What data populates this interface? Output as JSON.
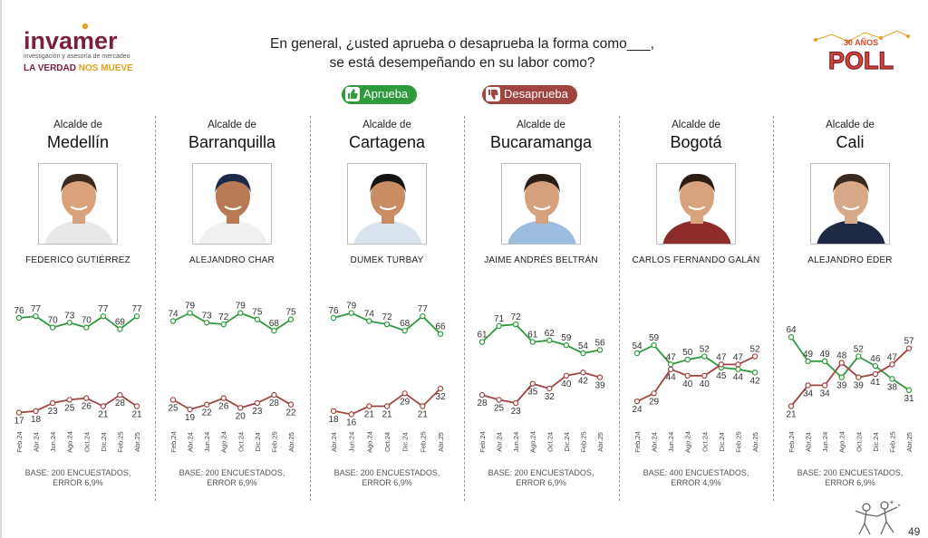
{
  "header": {
    "brand": "invamer",
    "tagline": "investigación y asesoría de mercadeo",
    "slogan_a": "LA VERDAD",
    "slogan_b": "NOS MUEVE",
    "question_line1": "En general, ¿usted aprueba o desaprueba la forma como___,",
    "question_line2": "se está desempeñando en su labor como?",
    "poll_years": "30 AÑOS",
    "poll_label": "POLL"
  },
  "legend": {
    "approve": "Aprueba",
    "disapprove": "Desaprueba",
    "approve_color": "#2e9a3c",
    "disapprove_color": "#a04440"
  },
  "page_number": "49",
  "panels": [
    {
      "role": "Alcalde de",
      "city": "Medellín",
      "name": "FEDERICO GUTIÉRREZ",
      "base_line1": "BASE: 200 ENCUESTADOS,",
      "base_line2": "ERROR 6,9%",
      "photo": {
        "skin": "#d9a27a",
        "hair": "#3a2a20",
        "shirt": "#e8e8ea"
      }
    },
    {
      "role": "Alcalde de",
      "city": "Barranquilla",
      "name": "ALEJANDRO CHAR",
      "base_line1": "BASE: 200 ENCUESTADOS,",
      "base_line2": "ERROR 6,9%",
      "photo": {
        "skin": "#b77a55",
        "hair": "#1d2a4a",
        "shirt": "#f0f0f0"
      }
    },
    {
      "role": "Alcalde de",
      "city": "Cartagena",
      "name": "DUMEK TURBAY",
      "base_line1": "BASE: 200 ENCUESTADOS,",
      "base_line2": "ERROR 6,9%",
      "photo": {
        "skin": "#c98c63",
        "hair": "#141414",
        "shirt": "#d9e4ef"
      }
    },
    {
      "role": "Alcalde de",
      "city": "Bucaramanga",
      "name": "JAIME ANDRÉS BELTRÁN",
      "base_line1": "BASE: 200 ENCUESTADOS,",
      "base_line2": "ERROR 6,9%",
      "photo": {
        "skin": "#d6a07c",
        "hair": "#2a1d16",
        "shirt": "#9cbde0"
      }
    },
    {
      "role": "Alcalde de",
      "city": "Bogotá",
      "name": "CARLOS FERNANDO GALÁN",
      "base_line1": "BASE: 400 ENCUESTADOS,",
      "base_line2": "ERROR 4,9%",
      "photo": {
        "skin": "#d7a27c",
        "hair": "#2b1c14",
        "shirt": "#8e2b2b"
      }
    },
    {
      "role": "Alcalde de",
      "city": "Cali",
      "name": "ALEJANDRO ÉDER",
      "base_line1": "BASE: 200 ENCUESTADOS,",
      "base_line2": "ERROR 6,9%",
      "photo": {
        "skin": "#d8a988",
        "hair": "#3a2a20",
        "shirt": "#1e2a44"
      }
    }
  ],
  "chart_data": [
    {
      "type": "line",
      "title": "Medellín",
      "categories": [
        "Feb.24",
        "Abr.24",
        "Jun.24",
        "Ago.24",
        "Oct.24",
        "Dic.24",
        "Feb.25",
        "Abr.25"
      ],
      "ylim": [
        0,
        100
      ],
      "series": [
        {
          "name": "Aprueba",
          "color": "#2e9a3c",
          "values": [
            76,
            77,
            70,
            73,
            70,
            77,
            69,
            77
          ]
        },
        {
          "name": "Desaprueba",
          "color": "#a04440",
          "values": [
            17,
            18,
            23,
            25,
            26,
            21,
            28,
            21
          ]
        }
      ]
    },
    {
      "type": "line",
      "title": "Barranquilla",
      "categories": [
        "Feb.24",
        "Abr.24",
        "Jun.24",
        "Ago.24",
        "Oct.24",
        "Dic.24",
        "Feb.25",
        "Abr.25"
      ],
      "ylim": [
        0,
        100
      ],
      "series": [
        {
          "name": "Aprueba",
          "color": "#2e9a3c",
          "values": [
            74,
            79,
            73,
            72,
            79,
            75,
            68,
            75
          ]
        },
        {
          "name": "Desaprueba",
          "color": "#a04440",
          "values": [
            25,
            19,
            22,
            26,
            20,
            23,
            28,
            22
          ]
        }
      ]
    },
    {
      "type": "line",
      "title": "Cartagena",
      "categories": [
        "Abr.24",
        "Jun.24",
        "Ago.24",
        "Oct.24",
        "Dic.24",
        "Feb.25",
        "Abr.25"
      ],
      "ylim": [
        0,
        100
      ],
      "series": [
        {
          "name": "Aprueba",
          "color": "#2e9a3c",
          "values": [
            76,
            79,
            74,
            72,
            68,
            77,
            66
          ]
        },
        {
          "name": "Desaprueba",
          "color": "#a04440",
          "values": [
            18,
            16,
            21,
            21,
            29,
            21,
            32
          ]
        }
      ]
    },
    {
      "type": "line",
      "title": "Bucaramanga",
      "categories": [
        "Feb.24",
        "Abr.24",
        "Jun.24",
        "Ago.24",
        "Oct.24",
        "Dic.24",
        "Feb.25",
        "Abr.25"
      ],
      "ylim": [
        0,
        100
      ],
      "series": [
        {
          "name": "Aprueba",
          "color": "#2e9a3c",
          "values": [
            61,
            71,
            72,
            61,
            62,
            59,
            54,
            56
          ]
        },
        {
          "name": "Desaprueba",
          "color": "#a04440",
          "values": [
            28,
            25,
            23,
            35,
            32,
            40,
            42,
            39
          ]
        }
      ]
    },
    {
      "type": "line",
      "title": "Bogotá",
      "categories": [
        "Feb.24",
        "Abr.24",
        "Jun.24",
        "Ago.24",
        "Oct.24",
        "Dic.24",
        "Feb.25",
        "Abr.25"
      ],
      "ylim": [
        0,
        100
      ],
      "series": [
        {
          "name": "Aprueba",
          "color": "#2e9a3c",
          "values": [
            54,
            59,
            47,
            50,
            52,
            45,
            44,
            42
          ]
        },
        {
          "name": "Desaprueba",
          "color": "#a04440",
          "values": [
            24,
            29,
            44,
            40,
            40,
            47,
            47,
            52
          ]
        }
      ]
    },
    {
      "type": "line",
      "title": "Cali",
      "categories": [
        "Feb.24",
        "Abr.24",
        "Jun.24",
        "Ago.24",
        "Oct.24",
        "Dic.24",
        "Feb.25",
        "Abr.25"
      ],
      "ylim": [
        0,
        100
      ],
      "series": [
        {
          "name": "Aprueba",
          "color": "#2e9a3c",
          "values": [
            64,
            49,
            49,
            39,
            52,
            46,
            38,
            31
          ]
        },
        {
          "name": "Desaprueba",
          "color": "#a04440",
          "values": [
            21,
            34,
            34,
            48,
            39,
            41,
            47,
            57
          ]
        }
      ]
    }
  ]
}
